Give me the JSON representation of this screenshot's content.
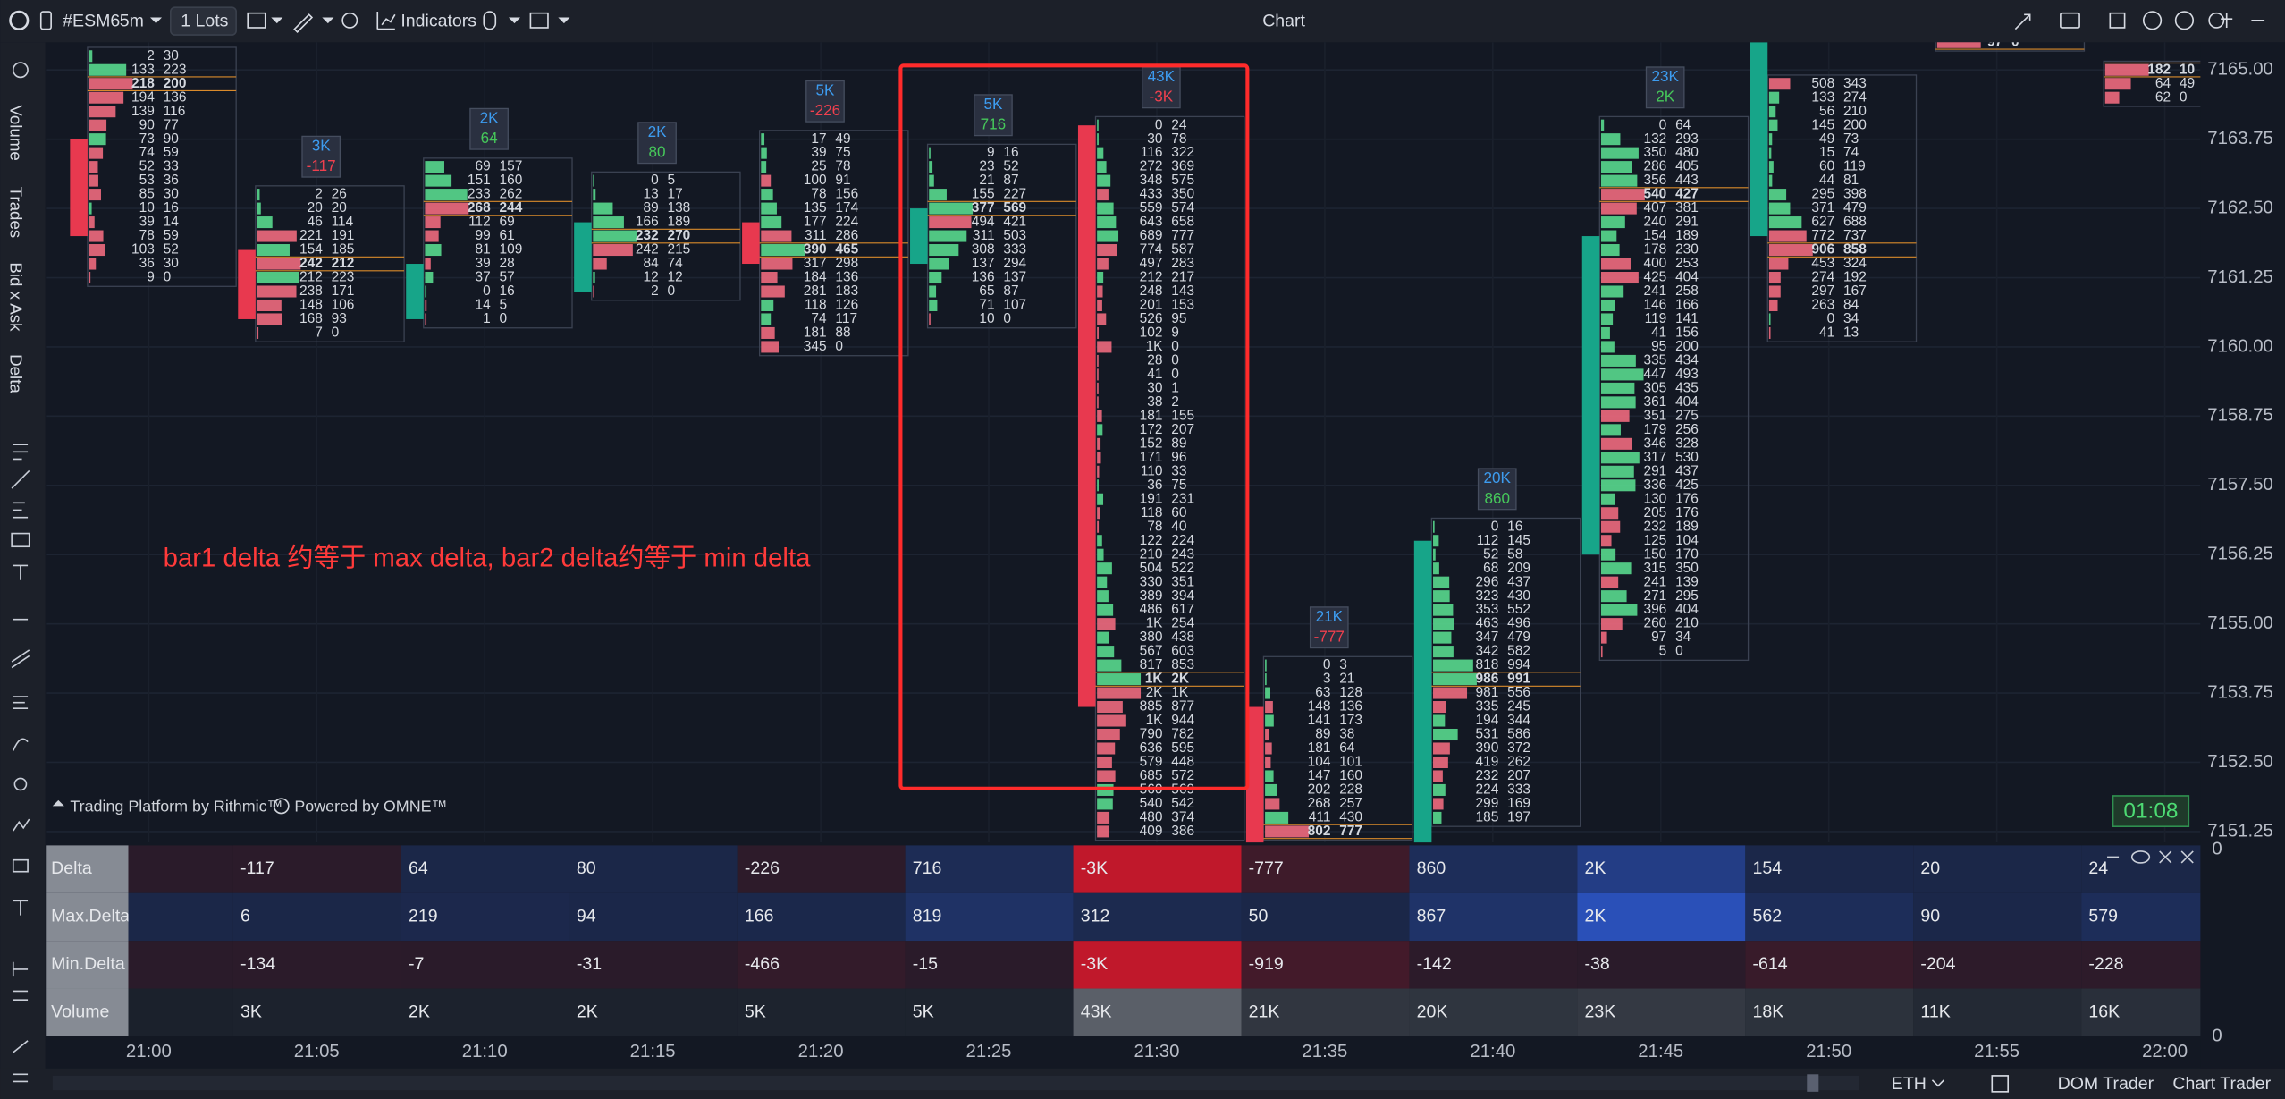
{
  "toolbar": {
    "symbol": "#ESM6",
    "interval": "5m",
    "quantity": "1 Lots",
    "indicators": "Indicators",
    "title": "Chart"
  },
  "side_tabs": [
    "Volume",
    "Trades",
    "Bid x Ask",
    "Delta"
  ],
  "price_axis": {
    "ylim": [
      7151,
      7165.5
    ],
    "ticks": [
      {
        "value": 7165,
        "label": "7165.00"
      },
      {
        "value": 7163.75,
        "label": "7163.75"
      },
      {
        "value": 7162.5,
        "label": "7162.50"
      },
      {
        "value": 7161.25,
        "label": "7161.25"
      },
      {
        "value": 7160,
        "label": "7160.00"
      },
      {
        "value": 7158.75,
        "label": "7158.75"
      },
      {
        "value": 7157.5,
        "label": "7157.50"
      },
      {
        "value": 7156.25,
        "label": "7156.25"
      },
      {
        "value": 7155,
        "label": "7155.00"
      },
      {
        "value": 7153.75,
        "label": "7153.75"
      },
      {
        "value": 7152.5,
        "label": "7152.50"
      },
      {
        "value": 7151.25,
        "label": "7151.25"
      }
    ]
  },
  "time_axis": [
    "21:00",
    "21:05",
    "21:10",
    "21:15",
    "21:20",
    "21:25",
    "21:30",
    "21:35",
    "21:40",
    "21:45",
    "21:50",
    "21:55",
    "22:00"
  ],
  "bars": [
    {
      "top_price": 7165.25,
      "open": 7163.75,
      "close": 7162.0,
      "rows": [
        [
          "2",
          "30"
        ],
        [
          "133",
          "223"
        ],
        [
          "218",
          "200"
        ],
        [
          "194",
          "136"
        ],
        [
          "139",
          "116"
        ],
        [
          "90",
          "77"
        ],
        [
          "73",
          "90"
        ],
        [
          "74",
          "59"
        ],
        [
          "52",
          "33"
        ],
        [
          "53",
          "36"
        ],
        [
          "85",
          "30"
        ],
        [
          "10",
          "16"
        ],
        [
          "39",
          "14"
        ],
        [
          "78",
          "59"
        ],
        [
          "103",
          "52"
        ],
        [
          "36",
          "30"
        ],
        [
          "9",
          "0"
        ]
      ]
    },
    {
      "volume": "3K",
      "delta": "-117",
      "top_price": 7162.75,
      "open": 7161.75,
      "close": 7160.5,
      "rows": [
        [
          "2",
          "26"
        ],
        [
          "20",
          "20"
        ],
        [
          "46",
          "114"
        ],
        [
          "221",
          "191"
        ],
        [
          "154",
          "185"
        ],
        [
          "242",
          "212"
        ],
        [
          "212",
          "223"
        ],
        [
          "238",
          "171"
        ],
        [
          "148",
          "106"
        ],
        [
          "168",
          "93"
        ],
        [
          "7",
          "0"
        ]
      ]
    },
    {
      "volume": "2K",
      "delta": "64",
      "top_price": 7163.25,
      "open": 7160.5,
      "close": 7161.5,
      "rows": [
        [
          "69",
          "157"
        ],
        [
          "151",
          "160"
        ],
        [
          "233",
          "262"
        ],
        [
          "268",
          "244"
        ],
        [
          "112",
          "69"
        ],
        [
          "99",
          "61"
        ],
        [
          "81",
          "109"
        ],
        [
          "39",
          "28"
        ],
        [
          "37",
          "57"
        ],
        [
          "0",
          "16"
        ],
        [
          "14",
          "5"
        ],
        [
          "1",
          "0"
        ]
      ]
    },
    {
      "volume": "2K",
      "delta": "80",
      "top_price": 7163.0,
      "open": 7161.0,
      "close": 7162.25,
      "rows": [
        [
          "0",
          "5"
        ],
        [
          "13",
          "17"
        ],
        [
          "89",
          "138"
        ],
        [
          "166",
          "189"
        ],
        [
          "232",
          "270"
        ],
        [
          "242",
          "215"
        ],
        [
          "84",
          "74"
        ],
        [
          "12",
          "12"
        ],
        [
          "2",
          "0"
        ]
      ]
    },
    {
      "volume": "5K",
      "delta": "-226",
      "top_price": 7163.75,
      "open": 7162.25,
      "close": 7161.5,
      "rows": [
        [
          "17",
          "49"
        ],
        [
          "39",
          "75"
        ],
        [
          "25",
          "78"
        ],
        [
          "100",
          "91"
        ],
        [
          "78",
          "156"
        ],
        [
          "135",
          "174"
        ],
        [
          "177",
          "224"
        ],
        [
          "311",
          "286"
        ],
        [
          "390",
          "465"
        ],
        [
          "317",
          "298"
        ],
        [
          "184",
          "136"
        ],
        [
          "281",
          "183"
        ],
        [
          "118",
          "126"
        ],
        [
          "74",
          "117"
        ],
        [
          "181",
          "88"
        ],
        [
          "345",
          "0"
        ]
      ]
    },
    {
      "volume": "5K",
      "delta": "716",
      "top_price": 7163.5,
      "open": 7161.5,
      "close": 7162.5,
      "rows": [
        [
          "9",
          "16"
        ],
        [
          "23",
          "52"
        ],
        [
          "21",
          "87"
        ],
        [
          "155",
          "227"
        ],
        [
          "377",
          "569"
        ],
        [
          "494",
          "421"
        ],
        [
          "311",
          "503"
        ],
        [
          "308",
          "333"
        ],
        [
          "137",
          "294"
        ],
        [
          "136",
          "137"
        ],
        [
          "65",
          "87"
        ],
        [
          "71",
          "107"
        ],
        [
          "10",
          "0"
        ]
      ]
    },
    {
      "volume": "43K",
      "delta": "-3K",
      "top_price": 7164.0,
      "open": 7164.0,
      "close": 7153.5,
      "rows": [
        [
          "0",
          "24"
        ],
        [
          "30",
          "78"
        ],
        [
          "116",
          "322"
        ],
        [
          "272",
          "369"
        ],
        [
          "348",
          "575"
        ],
        [
          "433",
          "350"
        ],
        [
          "559",
          "574"
        ],
        [
          "643",
          "658"
        ],
        [
          "689",
          "777"
        ],
        [
          "774",
          "587"
        ],
        [
          "497",
          "283"
        ],
        [
          "212",
          "217"
        ],
        [
          "248",
          "143"
        ],
        [
          "201",
          "153"
        ],
        [
          "526",
          "95"
        ],
        [
          "102",
          "9"
        ],
        [
          "1K",
          "0"
        ],
        [
          "28",
          "0"
        ],
        [
          "41",
          "0"
        ],
        [
          "30",
          "1"
        ],
        [
          "38",
          "2"
        ],
        [
          "181",
          "155"
        ],
        [
          "172",
          "207"
        ],
        [
          "152",
          "89"
        ],
        [
          "171",
          "96"
        ],
        [
          "110",
          "33"
        ],
        [
          "36",
          "75"
        ],
        [
          "191",
          "231"
        ],
        [
          "118",
          "60"
        ],
        [
          "78",
          "40"
        ],
        [
          "122",
          "224"
        ],
        [
          "210",
          "243"
        ],
        [
          "504",
          "522"
        ],
        [
          "330",
          "351"
        ],
        [
          "389",
          "394"
        ],
        [
          "486",
          "617"
        ],
        [
          "1K",
          "254"
        ],
        [
          "380",
          "438"
        ],
        [
          "567",
          "603"
        ],
        [
          "817",
          "853"
        ],
        [
          "1K",
          "2K"
        ],
        [
          "2K",
          "1K"
        ],
        [
          "885",
          "877"
        ],
        [
          "1K",
          "944"
        ],
        [
          "790",
          "782"
        ],
        [
          "636",
          "595"
        ],
        [
          "579",
          "448"
        ],
        [
          "685",
          "572"
        ],
        [
          "560",
          "569"
        ],
        [
          "540",
          "542"
        ],
        [
          "480",
          "374"
        ],
        [
          "409",
          "386"
        ]
      ]
    },
    {
      "volume": "21K",
      "delta": "-777",
      "top_price": 7154.25,
      "open": 7153.5,
      "close": 7151.0,
      "rows": [
        [
          "0",
          "3"
        ],
        [
          "3",
          "21"
        ],
        [
          "63",
          "128"
        ],
        [
          "148",
          "136"
        ],
        [
          "141",
          "173"
        ],
        [
          "89",
          "38"
        ],
        [
          "181",
          "64"
        ],
        [
          "104",
          "101"
        ],
        [
          "147",
          "160"
        ],
        [
          "202",
          "228"
        ],
        [
          "268",
          "257"
        ],
        [
          "411",
          "430"
        ],
        [
          "802",
          "777"
        ]
      ]
    },
    {
      "volume": "20K",
      "delta": "860",
      "top_price": 7156.75,
      "open": 7151.0,
      "close": 7156.5,
      "rows": [
        [
          "0",
          "16"
        ],
        [
          "112",
          "145"
        ],
        [
          "52",
          "58"
        ],
        [
          "68",
          "209"
        ],
        [
          "296",
          "437"
        ],
        [
          "323",
          "430"
        ],
        [
          "353",
          "552"
        ],
        [
          "463",
          "496"
        ],
        [
          "347",
          "479"
        ],
        [
          "342",
          "582"
        ],
        [
          "818",
          "994"
        ],
        [
          "986",
          "991"
        ],
        [
          "981",
          "556"
        ],
        [
          "335",
          "245"
        ],
        [
          "194",
          "344"
        ],
        [
          "531",
          "586"
        ],
        [
          "390",
          "372"
        ],
        [
          "419",
          "262"
        ],
        [
          "232",
          "207"
        ],
        [
          "224",
          "333"
        ],
        [
          "299",
          "169"
        ],
        [
          "185",
          "197"
        ]
      ]
    },
    {
      "volume": "23K",
      "delta": "2K",
      "top_price": 7164.0,
      "open": 7156.25,
      "close": 7162.0,
      "rows": [
        [
          "0",
          "64"
        ],
        [
          "132",
          "293"
        ],
        [
          "350",
          "480"
        ],
        [
          "286",
          "405"
        ],
        [
          "356",
          "443"
        ],
        [
          "540",
          "427"
        ],
        [
          "407",
          "381"
        ],
        [
          "240",
          "291"
        ],
        [
          "154",
          "189"
        ],
        [
          "178",
          "230"
        ],
        [
          "400",
          "253"
        ],
        [
          "425",
          "404"
        ],
        [
          "241",
          "258"
        ],
        [
          "146",
          "166"
        ],
        [
          "119",
          "141"
        ],
        [
          "41",
          "156"
        ],
        [
          "95",
          "200"
        ],
        [
          "335",
          "434"
        ],
        [
          "447",
          "493"
        ],
        [
          "305",
          "435"
        ],
        [
          "361",
          "404"
        ],
        [
          "351",
          "275"
        ],
        [
          "179",
          "256"
        ],
        [
          "346",
          "328"
        ],
        [
          "317",
          "530"
        ],
        [
          "291",
          "437"
        ],
        [
          "336",
          "425"
        ],
        [
          "130",
          "176"
        ],
        [
          "205",
          "176"
        ],
        [
          "232",
          "189"
        ],
        [
          "125",
          "104"
        ],
        [
          "150",
          "170"
        ],
        [
          "315",
          "350"
        ],
        [
          "241",
          "139"
        ],
        [
          "271",
          "295"
        ],
        [
          "396",
          "404"
        ],
        [
          "260",
          "210"
        ],
        [
          "97",
          "34"
        ],
        [
          "5",
          "0"
        ]
      ]
    },
    {
      "top_price": 7164.75,
      "open": 7162.0,
      "close": 7165.5,
      "rows": [
        [
          "508",
          "343"
        ],
        [
          "133",
          "274"
        ],
        [
          "56",
          "210"
        ],
        [
          "145",
          "200"
        ],
        [
          "49",
          "73"
        ],
        [
          "15",
          "74"
        ],
        [
          "60",
          "119"
        ],
        [
          "44",
          "81"
        ],
        [
          "295",
          "398"
        ],
        [
          "371",
          "479"
        ],
        [
          "627",
          "688"
        ],
        [
          "772",
          "737"
        ],
        [
          "906",
          "858"
        ],
        [
          "453",
          "324"
        ],
        [
          "274",
          "192"
        ],
        [
          "297",
          "167"
        ],
        [
          "263",
          "84"
        ],
        [
          "0",
          "34"
        ],
        [
          "41",
          "13"
        ]
      ]
    },
    {
      "top_price": 7165.5,
      "rows": [
        [
          "97",
          "0"
        ]
      ]
    },
    {
      "top_price": 7165.0,
      "rows": [
        [
          "182",
          "10"
        ],
        [
          "64",
          "49"
        ],
        [
          "62",
          "0"
        ]
      ]
    }
  ],
  "annotation": "bar1 delta 约等于 max delta, bar2 delta约等于 min delta",
  "watermark": {
    "platform": "Trading Platform by Rithmic™",
    "powered": "Powered by OMNE™"
  },
  "timer": "01:08",
  "indicator_table": {
    "rows": [
      {
        "label": "Delta",
        "cells": [
          "-117",
          "64",
          "80",
          "-226",
          "716",
          "-3K",
          "-777",
          "860",
          "2K",
          "154",
          "20",
          "24"
        ]
      },
      {
        "label": "Max.Delta",
        "cells": [
          "6",
          "219",
          "94",
          "166",
          "819",
          "312",
          "50",
          "867",
          "2K",
          "562",
          "90",
          "579"
        ]
      },
      {
        "label": "Min.Delta",
        "cells": [
          "-134",
          "-7",
          "-31",
          "-466",
          "-15",
          "-3K",
          "-919",
          "-142",
          "-38",
          "-614",
          "-204",
          "-228"
        ]
      },
      {
        "label": "Volume",
        "cells": [
          "3K",
          "2K",
          "2K",
          "5K",
          "5K",
          "43K",
          "21K",
          "20K",
          "23K",
          "18K",
          "11K",
          "16K"
        ]
      }
    ]
  },
  "indicator_axis": [
    "0",
    "0"
  ],
  "status_bar": {
    "session": "ETH",
    "dom": "DOM Trader",
    "chart_trader": "Chart Trader"
  }
}
